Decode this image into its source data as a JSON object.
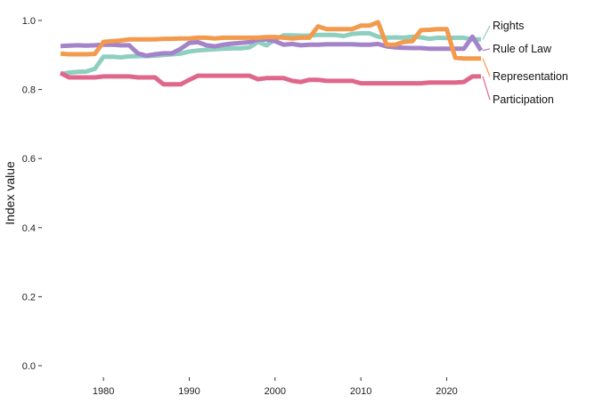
{
  "chart_data": {
    "type": "line",
    "ylabel": "Index value",
    "ylim": [
      0,
      1
    ],
    "xlim": [
      1975,
      2024
    ],
    "y_ticks": [
      0.0,
      0.2,
      0.4,
      0.6,
      0.8,
      1.0
    ],
    "y_tick_labels": [
      "0.0",
      "0.2",
      "0.4",
      "0.6",
      "0.8",
      "1.0"
    ],
    "x_ticks": [
      1980,
      1990,
      2000,
      2010,
      2020
    ],
    "x_tick_labels": [
      "1980",
      "1990",
      "2000",
      "2010",
      "2020"
    ],
    "grid": false,
    "legend_placement": "right (direct labels at line ends)",
    "series": [
      {
        "name": "Rights",
        "color": "#8ecfc0",
        "label_y": 0.985,
        "x": [
          1975,
          1976,
          1977,
          1978,
          1979,
          1980,
          1981,
          1982,
          1983,
          1984,
          1985,
          1986,
          1987,
          1988,
          1989,
          1990,
          1991,
          1992,
          1993,
          1994,
          1995,
          1996,
          1997,
          1998,
          1999,
          2000,
          2001,
          2002,
          2003,
          2004,
          2005,
          2006,
          2007,
          2008,
          2009,
          2010,
          2011,
          2012,
          2013,
          2014,
          2015,
          2016,
          2017,
          2018,
          2019,
          2020,
          2021,
          2022,
          2023,
          2024
        ],
        "values": [
          0.845,
          0.849,
          0.851,
          0.852,
          0.86,
          0.895,
          0.895,
          0.893,
          0.896,
          0.897,
          0.897,
          0.898,
          0.9,
          0.902,
          0.904,
          0.91,
          0.913,
          0.915,
          0.917,
          0.918,
          0.919,
          0.919,
          0.922,
          0.938,
          0.928,
          0.945,
          0.957,
          0.957,
          0.956,
          0.956,
          0.958,
          0.958,
          0.958,
          0.955,
          0.961,
          0.963,
          0.963,
          0.953,
          0.95,
          0.951,
          0.95,
          0.953,
          0.951,
          0.947,
          0.95,
          0.949,
          0.95,
          0.95,
          0.945,
          0.945
        ]
      },
      {
        "name": "Rule of Law",
        "color": "#a384c9",
        "label_y": 0.918,
        "x": [
          1975,
          1976,
          1977,
          1978,
          1979,
          1980,
          1981,
          1982,
          1983,
          1984,
          1985,
          1986,
          1987,
          1988,
          1989,
          1990,
          1991,
          1992,
          1993,
          1994,
          1995,
          1996,
          1997,
          1998,
          1999,
          2000,
          2001,
          2002,
          2003,
          2004,
          2005,
          2006,
          2007,
          2008,
          2009,
          2010,
          2011,
          2012,
          2013,
          2014,
          2015,
          2016,
          2017,
          2018,
          2019,
          2020,
          2021,
          2022,
          2023,
          2024
        ],
        "values": [
          0.926,
          0.927,
          0.928,
          0.927,
          0.928,
          0.93,
          0.93,
          0.928,
          0.928,
          0.905,
          0.898,
          0.902,
          0.905,
          0.905,
          0.918,
          0.935,
          0.937,
          0.928,
          0.925,
          0.93,
          0.933,
          0.935,
          0.937,
          0.944,
          0.945,
          0.94,
          0.93,
          0.932,
          0.928,
          0.93,
          0.93,
          0.931,
          0.931,
          0.931,
          0.931,
          0.93,
          0.93,
          0.932,
          0.925,
          0.922,
          0.921,
          0.92,
          0.92,
          0.918,
          0.918,
          0.918,
          0.918,
          0.918,
          0.953,
          0.913
        ]
      },
      {
        "name": "Representation",
        "color": "#f39a4c",
        "label_y": 0.838,
        "x": [
          1975,
          1976,
          1977,
          1978,
          1979,
          1980,
          1981,
          1982,
          1983,
          1984,
          1985,
          1986,
          1987,
          1988,
          1989,
          1990,
          1991,
          1992,
          1993,
          1994,
          1995,
          1996,
          1997,
          1998,
          1999,
          2000,
          2001,
          2002,
          2003,
          2004,
          2005,
          2006,
          2007,
          2008,
          2009,
          2010,
          2011,
          2012,
          2013,
          2014,
          2015,
          2016,
          2017,
          2018,
          2019,
          2020,
          2021,
          2022,
          2023,
          2024
        ],
        "values": [
          0.904,
          0.902,
          0.902,
          0.902,
          0.903,
          0.938,
          0.94,
          0.942,
          0.945,
          0.945,
          0.945,
          0.945,
          0.947,
          0.947,
          0.948,
          0.948,
          0.95,
          0.95,
          0.948,
          0.95,
          0.95,
          0.95,
          0.95,
          0.95,
          0.952,
          0.952,
          0.95,
          0.948,
          0.95,
          0.95,
          0.983,
          0.975,
          0.975,
          0.975,
          0.975,
          0.985,
          0.985,
          0.995,
          0.93,
          0.93,
          0.938,
          0.94,
          0.972,
          0.973,
          0.975,
          0.975,
          0.892,
          0.89,
          0.89,
          0.89
        ]
      },
      {
        "name": "Participation",
        "color": "#e0678c",
        "label_y": 0.77,
        "x": [
          1975,
          1976,
          1977,
          1978,
          1979,
          1980,
          1981,
          1982,
          1983,
          1984,
          1985,
          1986,
          1987,
          1988,
          1989,
          1990,
          1991,
          1992,
          1993,
          1994,
          1995,
          1996,
          1997,
          1998,
          1999,
          2000,
          2001,
          2002,
          2003,
          2004,
          2005,
          2006,
          2007,
          2008,
          2009,
          2010,
          2011,
          2012,
          2013,
          2014,
          2015,
          2016,
          2017,
          2018,
          2019,
          2020,
          2021,
          2022,
          2023,
          2024
        ],
        "values": [
          0.848,
          0.835,
          0.835,
          0.835,
          0.835,
          0.838,
          0.838,
          0.838,
          0.838,
          0.835,
          0.835,
          0.835,
          0.815,
          0.815,
          0.815,
          0.828,
          0.84,
          0.84,
          0.84,
          0.84,
          0.84,
          0.84,
          0.84,
          0.83,
          0.833,
          0.833,
          0.833,
          0.825,
          0.822,
          0.828,
          0.828,
          0.825,
          0.825,
          0.825,
          0.825,
          0.818,
          0.818,
          0.818,
          0.818,
          0.818,
          0.818,
          0.818,
          0.818,
          0.82,
          0.82,
          0.82,
          0.82,
          0.822,
          0.838,
          0.838
        ]
      }
    ]
  }
}
